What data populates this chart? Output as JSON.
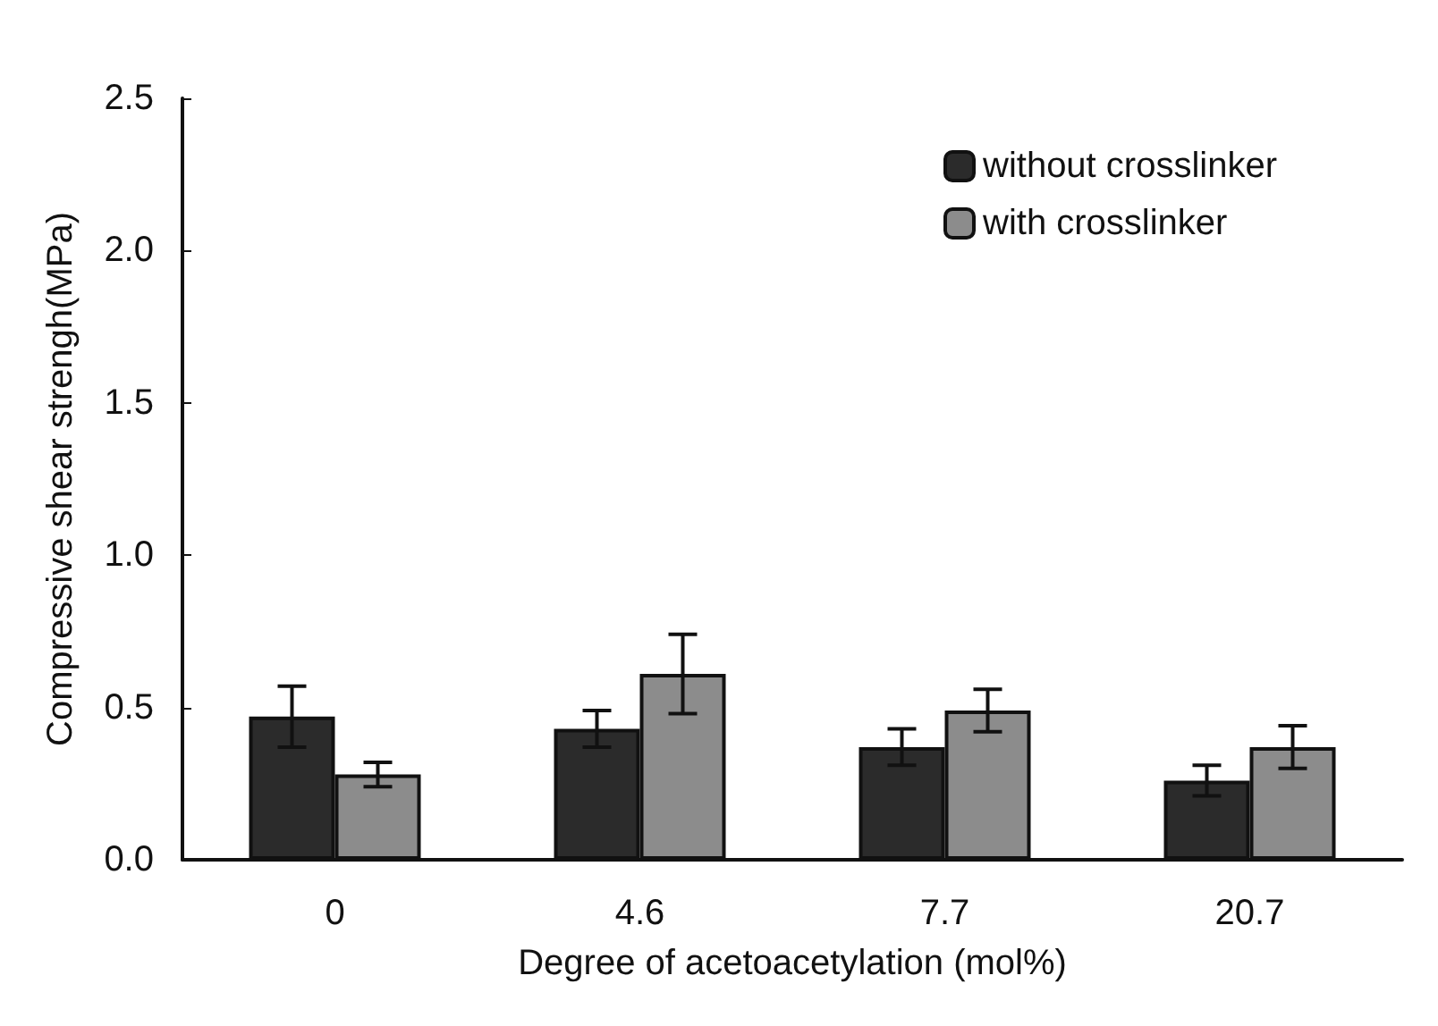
{
  "chart_data": {
    "type": "bar",
    "xlabel": "Degree of acetoacetylation (mol%)",
    "ylabel": "Compressive shear strengh(MPa)",
    "categories": [
      "0",
      "4.6",
      "7.7",
      "20.7"
    ],
    "series": [
      {
        "name": "without crosslinker",
        "color": "#2b2b2b",
        "values": [
          0.47,
          0.43,
          0.37,
          0.26
        ],
        "errors": [
          0.1,
          0.06,
          0.06,
          0.05
        ]
      },
      {
        "name": "with crosslinker",
        "color": "#8c8c8c",
        "values": [
          0.28,
          0.61,
          0.49,
          0.37
        ],
        "errors": [
          0.04,
          0.13,
          0.07,
          0.07
        ]
      }
    ],
    "ylim": [
      0,
      2.5
    ],
    "yticks": [
      {
        "value": 0,
        "label": "0.0"
      },
      {
        "value": 0.5,
        "label": "0.5"
      },
      {
        "value": 1,
        "label": "1.0"
      },
      {
        "value": 1.5,
        "label": "1.5"
      },
      {
        "value": 2,
        "label": "2.0"
      },
      {
        "value": 2.5,
        "label": "2.5"
      }
    ],
    "grid": false,
    "legend": "top right"
  }
}
